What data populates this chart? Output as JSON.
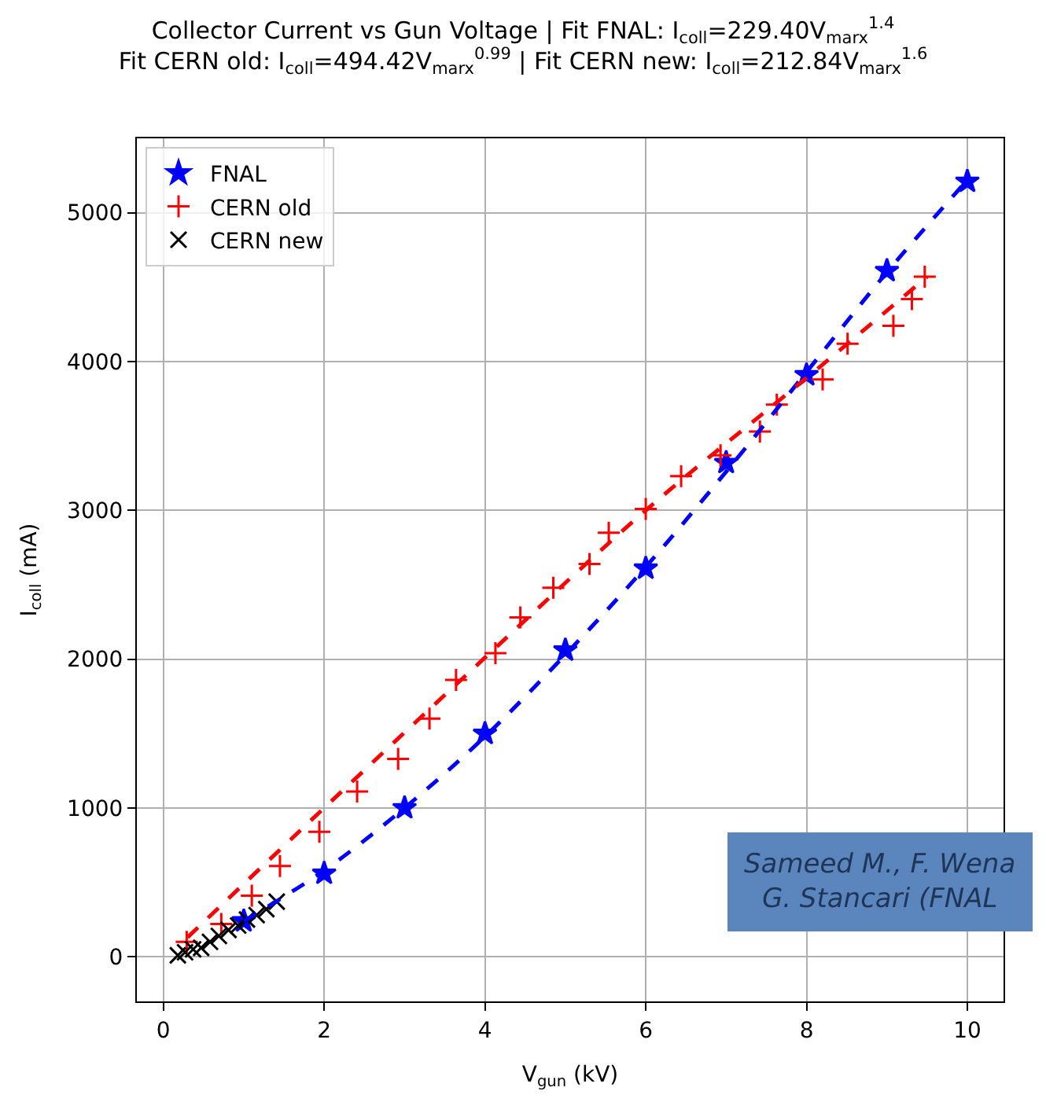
{
  "chart_data": {
    "type": "scatter",
    "title": "Collector Current vs Gun Voltage | Fit FNAL: I$_{coll}$=229.40V$_{marx}$$^{1.4}$\nFit CERN old: I$_{coll}$=494.42V$_{marx}$$^{0.99}$ | Fit CERN new: I$_{coll}$=212.84V$_{marx}$$^{1.6}$",
    "xlabel": "V$_{gun}$ (kV)",
    "ylabel": "I$_{coll}$ (mA)",
    "xlim": [
      -0.33,
      10.45
    ],
    "ylim": [
      -300,
      5500
    ],
    "xticks": [
      0,
      2,
      4,
      6,
      8,
      10
    ],
    "yticks": [
      0,
      1000,
      2000,
      3000,
      4000,
      5000
    ],
    "grid": true,
    "legend": "top left",
    "series": [
      {
        "name": "FNAL",
        "marker": "star",
        "color": "#0000ff",
        "x": [
          1,
          2,
          3,
          4,
          5,
          6,
          7,
          8,
          9,
          10
        ],
        "values": [
          240,
          560,
          1000,
          1500,
          2060,
          2610,
          3320,
          3910,
          4610,
          5210
        ]
      },
      {
        "name": "CERN old",
        "marker": "cross",
        "color": "#ff0000",
        "x": [
          0.29,
          0.72,
          1.1,
          1.45,
          1.94,
          2.41,
          2.92,
          3.31,
          3.64,
          4.13,
          4.44,
          4.85,
          5.3,
          5.54,
          6.0,
          6.44,
          6.93,
          7.42,
          7.63,
          8.2,
          8.51,
          9.08,
          9.31,
          9.47
        ],
        "values": [
          100,
          220,
          410,
          610,
          840,
          1110,
          1330,
          1600,
          1860,
          2040,
          2280,
          2480,
          2640,
          2850,
          3010,
          3230,
          3370,
          3530,
          3710,
          3880,
          4120,
          4240,
          4420,
          4570
        ]
      },
      {
        "name": "CERN new",
        "marker": "x",
        "color": "#000000",
        "x": [
          0.18,
          0.27,
          0.37,
          0.47,
          0.58,
          0.69,
          0.81,
          0.93,
          1.04,
          1.16,
          1.28,
          1.41
        ],
        "values": [
          10,
          30,
          50,
          60,
          100,
          140,
          180,
          210,
          250,
          280,
          320,
          370
        ]
      },
      {
        "type": "line",
        "line_style": "dashed",
        "color": "#0000ff",
        "x": [
          1,
          2,
          3,
          4,
          5,
          6,
          7,
          8,
          9,
          10
        ],
        "values": [
          240,
          580,
          1000,
          1480,
          2030,
          2620,
          3260,
          3930,
          4600,
          5220
        ]
      },
      {
        "type": "line",
        "line_style": "dashed",
        "color": "#ff0000",
        "x": [
          0.3,
          2,
          4,
          6,
          8,
          9.5
        ],
        "values": [
          130,
          1000,
          2010,
          3000,
          3890,
          4570
        ]
      }
    ],
    "annotations": [
      "Sameed M., F. Wena\nG. Stancari (FNAL"
    ]
  }
}
